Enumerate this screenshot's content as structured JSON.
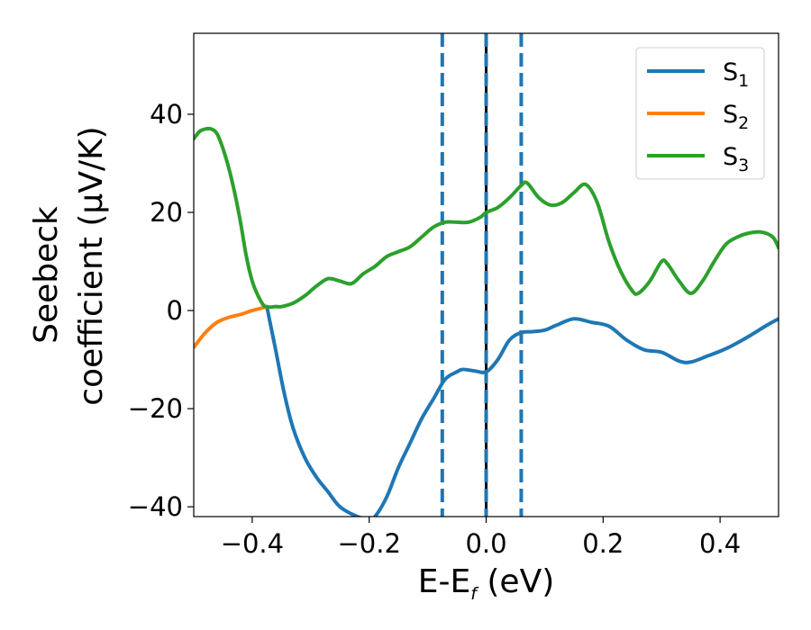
{
  "chart_data": {
    "type": "line",
    "xlabel": {
      "main": "E-E",
      "sub": "f",
      "unit": " (eV)"
    },
    "ylabel": {
      "line1": "Seebeck",
      "line2": "coefficient  (μV/K)"
    },
    "xlim": [
      -0.5,
      0.5
    ],
    "ylim": [
      -42,
      56.5
    ],
    "xticks": [
      -0.4,
      -0.2,
      0.0,
      0.2,
      0.4
    ],
    "xtick_labels": [
      "−0.4",
      "−0.2",
      "0.0",
      "0.2",
      "0.4"
    ],
    "yticks": [
      -40,
      -20,
      0,
      20,
      40
    ],
    "ytick_labels": [
      "−40",
      "−20",
      "0",
      "20",
      "40"
    ],
    "grid": false,
    "legend_position": "top-right",
    "vlines": [
      {
        "x": -0.075,
        "style": "dashed",
        "color": "#1f77b4"
      },
      {
        "x": 0.0,
        "style": "solid",
        "color": "#000000"
      },
      {
        "x": 0.0,
        "style": "dashed",
        "color": "#1f77b4"
      },
      {
        "x": 0.06,
        "style": "dashed",
        "color": "#1f77b4"
      }
    ],
    "series": [
      {
        "name": "S",
        "sub": "1",
        "color": "#1f77b4",
        "x": [
          -0.375,
          -0.36,
          -0.345,
          -0.33,
          -0.31,
          -0.29,
          -0.27,
          -0.25,
          -0.22,
          -0.2,
          -0.19,
          -0.17,
          -0.15,
          -0.13,
          -0.11,
          -0.09,
          -0.07,
          -0.05,
          -0.04,
          -0.02,
          0.0,
          0.02,
          0.04,
          0.06,
          0.08,
          0.1,
          0.12,
          0.15,
          0.18,
          0.21,
          0.24,
          0.27,
          0.3,
          0.33,
          0.35,
          0.38,
          0.4,
          0.42,
          0.45,
          0.48,
          0.5
        ],
        "values": [
          0.8,
          -8,
          -17,
          -24,
          -30,
          -34,
          -37,
          -40,
          -42,
          -42.5,
          -42,
          -38,
          -32,
          -27,
          -22,
          -18,
          -14,
          -12.5,
          -12,
          -12.3,
          -12.5,
          -10,
          -6,
          -4.5,
          -4.3,
          -4,
          -3,
          -1.7,
          -2.4,
          -3.2,
          -6,
          -8,
          -8.5,
          -10.3,
          -10.5,
          -9.2,
          -8.3,
          -7.2,
          -5.2,
          -3,
          -1.7
        ]
      },
      {
        "name": "S",
        "sub": "2",
        "color": "#ff7f0e",
        "x": [
          -0.5,
          -0.48,
          -0.46,
          -0.44,
          -0.42,
          -0.4,
          -0.38,
          -0.375
        ],
        "values": [
          -7.5,
          -4.5,
          -2.4,
          -1.4,
          -0.8,
          0.0,
          0.6,
          0.8
        ]
      },
      {
        "name": "S",
        "sub": "3",
        "color": "#2ca02c",
        "x": [
          -0.5,
          -0.49,
          -0.48,
          -0.47,
          -0.46,
          -0.45,
          -0.44,
          -0.43,
          -0.42,
          -0.41,
          -0.4,
          -0.39,
          -0.38,
          -0.37,
          -0.36,
          -0.35,
          -0.33,
          -0.31,
          -0.29,
          -0.27,
          -0.25,
          -0.23,
          -0.21,
          -0.19,
          -0.17,
          -0.15,
          -0.13,
          -0.11,
          -0.09,
          -0.07,
          -0.05,
          -0.03,
          -0.01,
          0.0,
          0.02,
          0.04,
          0.06,
          0.07,
          0.09,
          0.11,
          0.13,
          0.15,
          0.17,
          0.19,
          0.21,
          0.23,
          0.25,
          0.26,
          0.28,
          0.3,
          0.31,
          0.33,
          0.35,
          0.37,
          0.39,
          0.41,
          0.43,
          0.45,
          0.47,
          0.49,
          0.5
        ],
        "values": [
          35,
          36.5,
          37,
          37,
          36,
          33,
          29,
          24,
          18,
          11,
          6,
          3,
          1,
          0.7,
          0.8,
          0.8,
          1.5,
          3,
          5,
          6.5,
          6,
          5.5,
          7.5,
          9,
          11,
          12,
          13,
          15,
          17,
          18,
          18,
          18,
          19,
          20,
          21,
          23,
          25.5,
          26,
          23,
          21.5,
          22,
          24,
          25.7,
          22,
          14,
          8,
          4,
          3.5,
          6,
          10,
          9.5,
          6,
          3.5,
          6,
          10,
          13.5,
          15,
          15.8,
          16,
          15,
          12.8
        ]
      }
    ]
  }
}
